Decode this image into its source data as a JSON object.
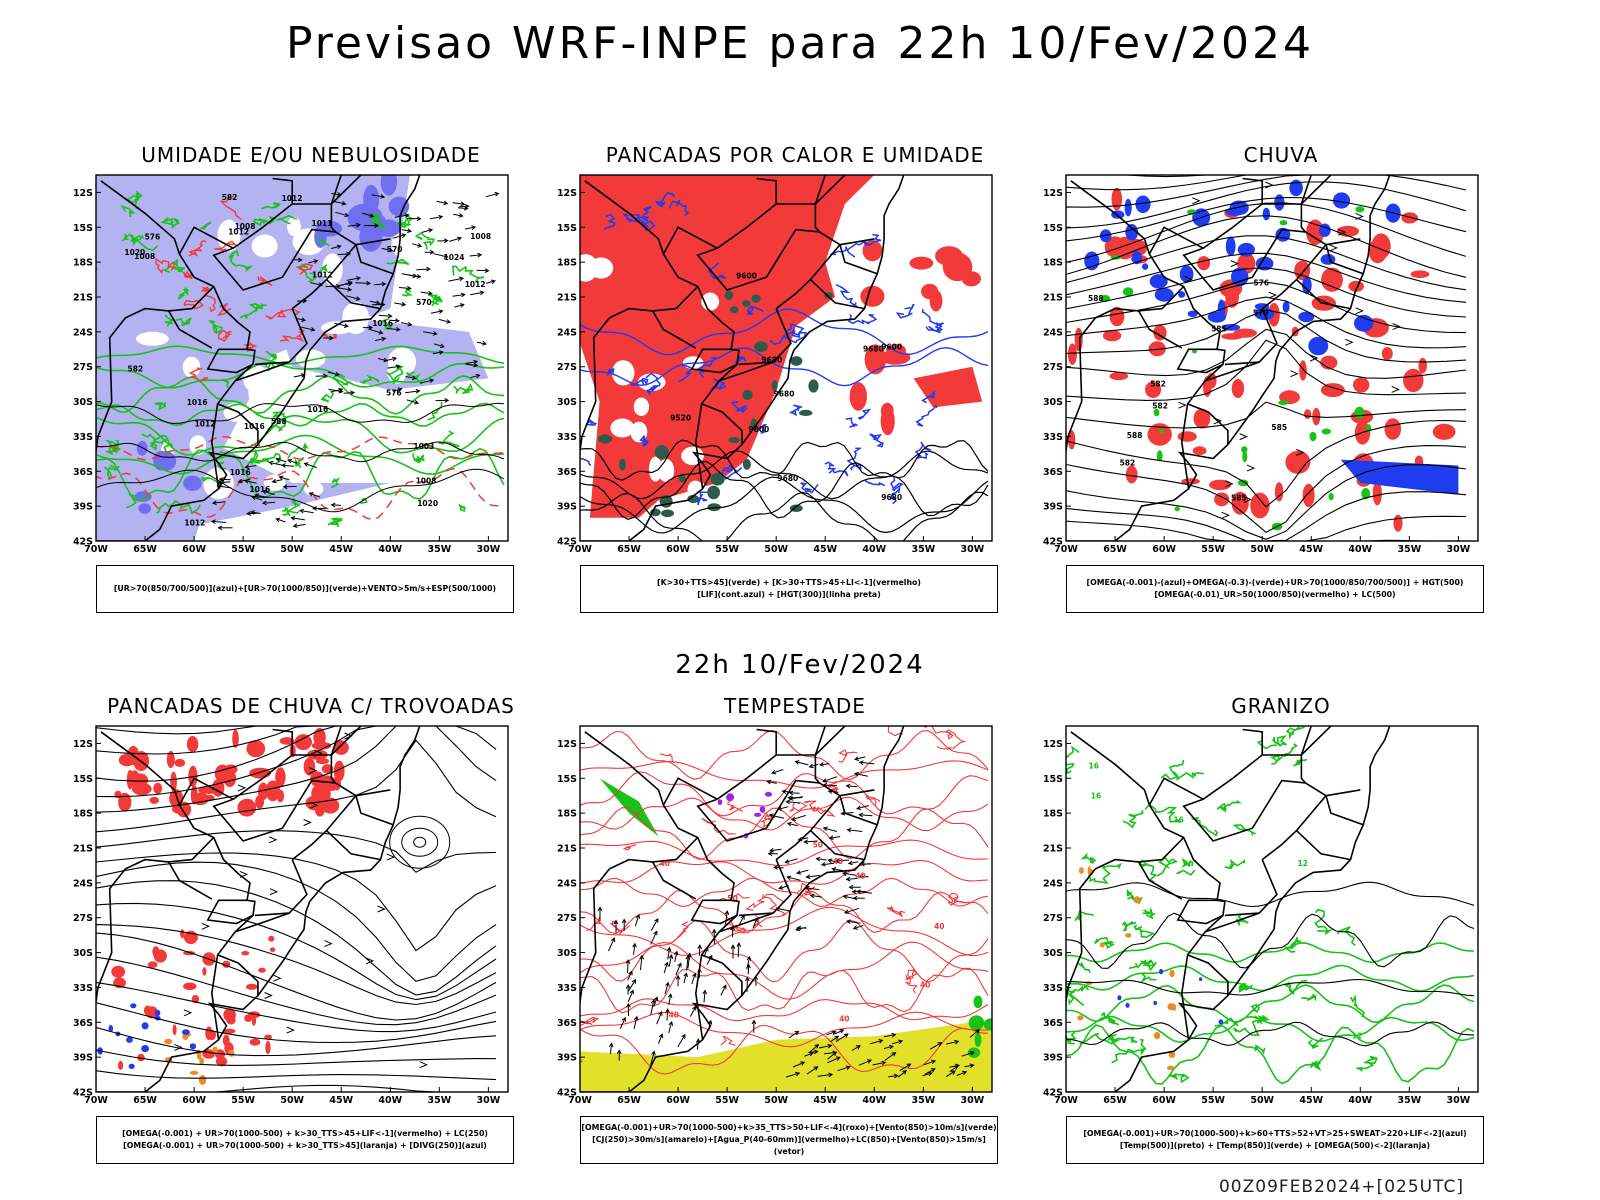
{
  "page": {
    "title": "Previsao WRF-INPE  para 22h 10/Fev/2024",
    "mid_date": "22h 10/Fev/2024",
    "run_label": "00Z09FEB2024+[025UTC]"
  },
  "axes": {
    "lat_ticks": [
      "12S",
      "15S",
      "18S",
      "21S",
      "24S",
      "27S",
      "30S",
      "33S",
      "36S",
      "39S",
      "42S"
    ],
    "lon_ticks": [
      "70W",
      "65W",
      "60W",
      "55W",
      "50W",
      "45W",
      "40W",
      "35W",
      "30W"
    ]
  },
  "panels": [
    {
      "id": "umidade",
      "title": "UMIDADE E/OU NEBULOSIDADE",
      "legend": [
        "[UR>70(850/700/500)](azul)+[UR>70(1000/850)](verde)+VENTO>5m/s+ESP(500/1000)"
      ],
      "contour_labels": [
        "1008",
        "1003",
        "1016",
        "1012",
        "1012",
        "1011",
        "1016",
        "1016",
        "1008",
        "1012",
        "1016",
        "1012",
        "1008",
        "1012",
        "1008",
        "1012",
        "1016",
        "1024",
        "1020",
        "1020",
        "1016",
        "570",
        "576",
        "582",
        "582",
        "588",
        "570",
        "576"
      ]
    },
    {
      "id": "pancadas-calor",
      "title": "PANCADAS POR CALOR E UMIDADE",
      "legend": [
        "[K>30+TTS>45](verde) + [K>30+TTS>45+LI<-1](vermelho)",
        "[LIF](cont.azul) + [HGT(300)](linha preta)"
      ],
      "contour_labels": [
        "9680",
        "9680",
        "9600",
        "9680",
        "9680",
        "9600",
        "9680",
        "9520",
        "9800"
      ]
    },
    {
      "id": "chuva",
      "title": "CHUVA",
      "legend": [
        "[OMEGA(-0.001)-(azul)+OMEGA(-0.3)-(verde)+UR>70(1000/850/700/500)] + HGT(500)",
        "[OMEGA(-0.01)_UR>50(1000/850)(vermelho) + LC(500)"
      ],
      "contour_labels": [
        "588",
        "585",
        "585",
        "582",
        "588",
        "579",
        "576",
        "582",
        "585",
        "582"
      ]
    },
    {
      "id": "pancadas-trovoadas",
      "title": "PANCADAS DE CHUVA C/ TROVOADAS",
      "legend": [
        "[OMEGA(-0.001) + UR>70(1000-500) + k>30_TTS>45+LIF<-1](vermelho) + LC(250)",
        "[OMEGA(-0.001) + UR>70(1000-500) + k>30_TTS>45](laranja) + [DIVG(250)](azul)"
      ],
      "contour_labels": []
    },
    {
      "id": "tempestade",
      "title": "TEMPESTADE",
      "legend": [
        "[OMEGA(-0.001)+UR>70(1000-500)+k>35_TTS>50+LIF<-4](roxo)+[Vento(850)>10m/s](verde)",
        "[CJ(250)>30m/s](amarelo)+[Agua_P(40-60mm)](vermelho)+LC(850)+[Vento(850)>15m/s](vetor)"
      ],
      "contour_labels": [
        "40",
        "40",
        "40",
        "50",
        "50",
        "40",
        "40",
        "40",
        "40"
      ]
    },
    {
      "id": "granizo",
      "title": "GRANIZO",
      "legend": [
        "[OMEGA(-0.001)+UR>70(1000-500)+k>60+TTS>52+VT>25+SWEAT>220+LIF<-2](azul)",
        "[Temp(500)](preto) + [Temp(850)](verde) + [OMEGA(500)<-2](laranja)"
      ],
      "contour_labels": [
        "16",
        "16",
        "12",
        "12",
        "16"
      ]
    }
  ],
  "colors": {
    "red": "#f23a3a",
    "blue": "#1f3cf0",
    "green": "#16c316",
    "lavender": "#b3b3f2",
    "violet": "#6f6ff0",
    "darkgreen": "#2f5a4a",
    "yellow": "#e3e02a",
    "orange": "#ef8a22",
    "purple": "#a020f0"
  }
}
